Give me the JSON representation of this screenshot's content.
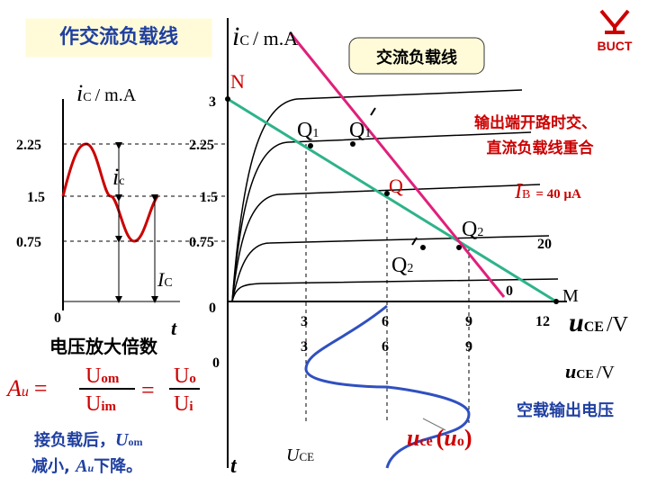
{
  "title": "作交流负载线",
  "ac_box": "交流负载线",
  "logo": "BUCT",
  "top_axis": {
    "sym": "i",
    "sub": "C",
    "unit": "/ m.A"
  },
  "left": {
    "axis": {
      "sym": "i",
      "sub": "C",
      "unit": "/ m.A"
    },
    "ticks": [
      2.25,
      1.5,
      0.75
    ],
    "origin": 0,
    "t": "t",
    "ic": {
      "sym": "i",
      "sub": "c"
    },
    "IC": {
      "sym": "I",
      "sub": "C"
    }
  },
  "main": {
    "ytop": 3,
    "yticks": [
      2.25,
      1.5,
      0.75
    ],
    "origin": 0,
    "xticks": [
      3,
      6,
      9,
      12
    ],
    "xticks2": [
      3,
      6,
      9
    ],
    "zero_m": 0,
    "M": "M",
    "N": "N",
    "Q": "Q",
    "Q1": {
      "sym": "Q",
      "sub": "1"
    },
    "Q1p": {
      "sym": "Q",
      "sub": "1"
    },
    "Q2": {
      "sym": "Q",
      "sub": "2"
    },
    "Q2p": {
      "sym": "Q",
      "sub": "2"
    },
    "ib": {
      "sym": "I",
      "sub": "B",
      "text": "= 40 µA"
    },
    "ib2": 20,
    "note": [
      "输出端开路时交、",
      "直流负载线重合"
    ],
    "x_axis": {
      "sym": "u",
      "sub": "CE",
      "unit": "/V"
    },
    "x_axis2": {
      "sym": "u",
      "sub": "CE",
      "unit": "/V"
    }
  },
  "bottom": {
    "origin": 0,
    "t": "t",
    "UCE": {
      "sym": "U",
      "sub": "CE"
    },
    "uce": {
      "sym": "u",
      "sub": "ce",
      "open": "(",
      "psym": "u",
      "psub": "o",
      "close": ")"
    },
    "empty": "空载输出电压"
  },
  "gain": {
    "heading": "电压放大倍数",
    "lhs": {
      "sym": "A",
      "sub": "u"
    },
    "eq": "=",
    "f1": {
      "num": {
        "sym": "U",
        "sub": "om"
      },
      "den": {
        "sym": "U",
        "sub": "im"
      }
    },
    "f2": {
      "num": {
        "sym": "U",
        "sub": "o"
      },
      "den": {
        "sym": "U",
        "sub": "i"
      }
    },
    "note1": {
      "text": "接负载后，",
      "sym": "U",
      "sub": "om"
    },
    "note2": {
      "text": "减小, ",
      "sym": "A",
      "sub": "u",
      "tail": "下降。"
    }
  }
}
